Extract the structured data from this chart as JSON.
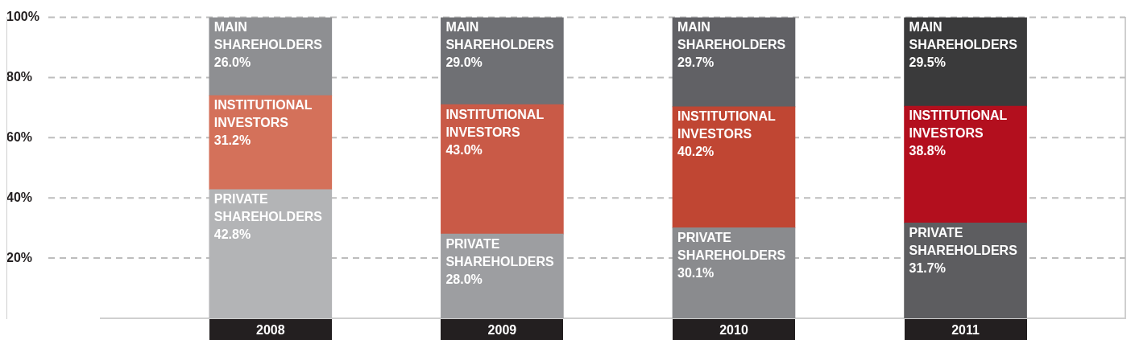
{
  "chart_data": {
    "type": "bar",
    "stacked": true,
    "categories": [
      "2008",
      "2009",
      "2010",
      "2011"
    ],
    "ylim": [
      0,
      100
    ],
    "yticks": [
      {
        "value": 20,
        "label": "20%"
      },
      {
        "value": 40,
        "label": "40%"
      },
      {
        "value": 60,
        "label": "60%"
      },
      {
        "value": 80,
        "label": "80%"
      },
      {
        "value": 100,
        "label": "100%"
      }
    ],
    "grid": "y",
    "legend": false,
    "series": [
      {
        "name": "PRIVATE SHAREHOLDERS",
        "colors": [
          "#b3b4b6",
          "#9d9ea1",
          "#8a8b8e",
          "#5d5d60"
        ],
        "values": [
          42.8,
          28.0,
          30.1,
          31.7
        ],
        "value_labels": [
          "42.8%",
          "28.0%",
          "30.1%",
          "31.7%"
        ]
      },
      {
        "name": "INSTITUTIONAL INVESTORS",
        "colors": [
          "#d4715a",
          "#c95a47",
          "#c04633",
          "#b30f1e"
        ],
        "values": [
          31.2,
          43.0,
          40.2,
          38.8
        ],
        "value_labels": [
          "31.2%",
          "43.0%",
          "40.2%",
          "38.8%"
        ]
      },
      {
        "name": "MAIN SHAREHOLDERS",
        "colors": [
          "#8e8f92",
          "#6f7074",
          "#616165",
          "#3a3a3b"
        ],
        "values": [
          26.0,
          29.0,
          29.7,
          29.5
        ],
        "value_labels": [
          "26.0%",
          "29.0%",
          "29.7%",
          "29.5%"
        ]
      }
    ]
  }
}
